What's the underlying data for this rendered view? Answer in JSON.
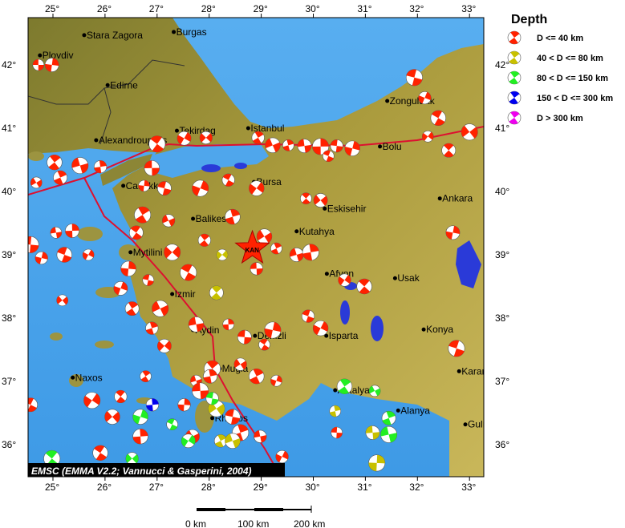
{
  "legend": {
    "title": "Depth",
    "items": [
      {
        "label": "D <= 40 km",
        "color": "#ff2200"
      },
      {
        "label": "40 < D <= 80 km",
        "color": "#c8c000"
      },
      {
        "label": "80 < D <= 150 km",
        "color": "#22ee22"
      },
      {
        "label": "150 < D <= 300 km",
        "color": "#0000ee"
      },
      {
        "label": "D > 300 km",
        "color": "#ee00ee"
      }
    ]
  },
  "credit": "EMSC (EMMA V2.2; Vannucci & Gasperini, 2004)",
  "axes": {
    "lon_ticks": [
      "25°",
      "26°",
      "27°",
      "28°",
      "29°",
      "30°",
      "31°",
      "32°",
      "33°"
    ],
    "lat_ticks": [
      "36°",
      "37°",
      "38°",
      "39°",
      "40°",
      "41°",
      "42°"
    ]
  },
  "scale_bar": {
    "labels": [
      "0 km",
      "100 km",
      "200 km"
    ]
  },
  "epicenter": {
    "label": "KAN",
    "lon": 28.83,
    "lat": 39.1,
    "color": "#ff2200"
  },
  "cities": [
    {
      "name": "Stara Zagora",
      "lon": 25.6,
      "lat": 42.47
    },
    {
      "name": "Burgas",
      "lon": 27.32,
      "lat": 42.52
    },
    {
      "name": "Plovdiv",
      "lon": 24.75,
      "lat": 42.15
    },
    {
      "name": "Edirne",
      "lon": 26.05,
      "lat": 41.68
    },
    {
      "name": "Alexandroupolis",
      "lon": 25.83,
      "lat": 40.81
    },
    {
      "name": "Tekirdag",
      "lon": 27.38,
      "lat": 40.96
    },
    {
      "name": "Istanbul",
      "lon": 28.75,
      "lat": 41.0
    },
    {
      "name": "Canakkale",
      "lon": 26.35,
      "lat": 40.09
    },
    {
      "name": "Bursa",
      "lon": 28.86,
      "lat": 40.15
    },
    {
      "name": "Bolu",
      "lon": 31.28,
      "lat": 40.71
    },
    {
      "name": "Zonguldak",
      "lon": 31.42,
      "lat": 41.43
    },
    {
      "name": "Ankara",
      "lon": 32.43,
      "lat": 39.89
    },
    {
      "name": "Eskisehir",
      "lon": 30.22,
      "lat": 39.73
    },
    {
      "name": "Kutahya",
      "lon": 29.68,
      "lat": 39.37
    },
    {
      "name": "Balikesir",
      "lon": 27.69,
      "lat": 39.57
    },
    {
      "name": "Mytilini",
      "lon": 26.49,
      "lat": 39.04
    },
    {
      "name": "Afyon",
      "lon": 30.26,
      "lat": 38.7
    },
    {
      "name": "Usak",
      "lon": 31.57,
      "lat": 38.63
    },
    {
      "name": "Konya",
      "lon": 32.12,
      "lat": 37.82
    },
    {
      "name": "Izmir",
      "lon": 27.29,
      "lat": 38.38
    },
    {
      "name": "Aydin",
      "lon": 27.69,
      "lat": 37.81
    },
    {
      "name": "Denizli",
      "lon": 28.88,
      "lat": 37.72
    },
    {
      "name": "Isparta",
      "lon": 30.25,
      "lat": 37.72
    },
    {
      "name": "Mugla",
      "lon": 28.2,
      "lat": 37.2
    },
    {
      "name": "Naxos",
      "lon": 25.38,
      "lat": 37.06
    },
    {
      "name": "Rhodos",
      "lon": 28.06,
      "lat": 36.42
    },
    {
      "name": "Antalya",
      "lon": 30.42,
      "lat": 36.86
    },
    {
      "name": "Alanya",
      "lon": 31.63,
      "lat": 36.54
    },
    {
      "name": "Karaman",
      "lon": 32.8,
      "lat": 37.16
    },
    {
      "name": "Gulnar",
      "lon": 32.92,
      "lat": 36.32
    }
  ],
  "events": [
    [
      24.72,
      42.0,
      0
    ],
    [
      24.98,
      42.0,
      0
    ],
    [
      31.94,
      41.8,
      0
    ],
    [
      32.14,
      41.48,
      0
    ],
    [
      32.4,
      41.16,
      0
    ],
    [
      32.2,
      40.87,
      0
    ],
    [
      32.6,
      40.65,
      0
    ],
    [
      33.0,
      40.94,
      0
    ],
    [
      28.94,
      40.85,
      0
    ],
    [
      29.22,
      40.73,
      0
    ],
    [
      29.52,
      40.73,
      0
    ],
    [
      29.83,
      40.72,
      0
    ],
    [
      30.14,
      40.71,
      0
    ],
    [
      30.45,
      40.72,
      0
    ],
    [
      30.75,
      40.68,
      0
    ],
    [
      30.29,
      40.56,
      0
    ],
    [
      27.52,
      40.84,
      0
    ],
    [
      27.0,
      40.75,
      0
    ],
    [
      27.94,
      40.85,
      0
    ],
    [
      25.03,
      40.46,
      0
    ],
    [
      24.68,
      40.14,
      0
    ],
    [
      25.14,
      40.22,
      0
    ],
    [
      25.52,
      40.41,
      0
    ],
    [
      25.91,
      40.39,
      0
    ],
    [
      26.9,
      40.37,
      0
    ],
    [
      26.75,
      40.09,
      0
    ],
    [
      27.14,
      40.05,
      0
    ],
    [
      27.83,
      40.05,
      0
    ],
    [
      28.37,
      40.18,
      0
    ],
    [
      28.91,
      40.05,
      0
    ],
    [
      29.86,
      39.89,
      0
    ],
    [
      30.14,
      39.86,
      0
    ],
    [
      26.72,
      39.63,
      0
    ],
    [
      27.22,
      39.54,
      0
    ],
    [
      28.45,
      39.6,
      0
    ],
    [
      25.06,
      39.35,
      0
    ],
    [
      25.37,
      39.38,
      0
    ],
    [
      24.57,
      39.16,
      0
    ],
    [
      24.78,
      38.95,
      0
    ],
    [
      25.22,
      39.0,
      0
    ],
    [
      25.68,
      39.0,
      0
    ],
    [
      26.6,
      39.35,
      0
    ],
    [
      27.29,
      39.04,
      0
    ],
    [
      27.91,
      39.23,
      0
    ],
    [
      29.06,
      39.29,
      0
    ],
    [
      29.29,
      39.1,
      0
    ],
    [
      29.68,
      39.0,
      0
    ],
    [
      29.95,
      39.04,
      0
    ],
    [
      28.91,
      38.78,
      0
    ],
    [
      26.45,
      38.78,
      0
    ],
    [
      26.83,
      38.6,
      0
    ],
    [
      26.3,
      38.47,
      0
    ],
    [
      27.6,
      38.72,
      0
    ],
    [
      30.6,
      38.6,
      0
    ],
    [
      30.98,
      38.5,
      0
    ],
    [
      25.18,
      38.28,
      0
    ],
    [
      26.52,
      38.15,
      0
    ],
    [
      27.06,
      38.15,
      0
    ],
    [
      26.9,
      37.84,
      0
    ],
    [
      27.75,
      37.9,
      0
    ],
    [
      28.37,
      37.9,
      0
    ],
    [
      28.68,
      37.7,
      0
    ],
    [
      29.22,
      37.81,
      0
    ],
    [
      29.9,
      38.03,
      0
    ],
    [
      30.14,
      37.84,
      0
    ],
    [
      29.06,
      37.58,
      0
    ],
    [
      27.14,
      37.56,
      0
    ],
    [
      28.06,
      37.2,
      0
    ],
    [
      28.6,
      37.27,
      0
    ],
    [
      28.91,
      37.08,
      0
    ],
    [
      27.75,
      37.01,
      0
    ],
    [
      28.02,
      37.08,
      0
    ],
    [
      27.83,
      36.85,
      0
    ],
    [
      27.52,
      36.63,
      0
    ],
    [
      28.45,
      36.44,
      0
    ],
    [
      29.29,
      37.01,
      0
    ],
    [
      24.57,
      36.63,
      0
    ],
    [
      25.75,
      36.7,
      0
    ],
    [
      26.3,
      36.76,
      0
    ],
    [
      26.14,
      36.44,
      0
    ],
    [
      26.78,
      37.08,
      0
    ],
    [
      27.68,
      36.13,
      0
    ],
    [
      28.6,
      36.19,
      0
    ],
    [
      28.98,
      36.13,
      0
    ],
    [
      26.68,
      36.13,
      0
    ],
    [
      30.45,
      36.19,
      0
    ],
    [
      32.68,
      39.35,
      0
    ],
    [
      32.75,
      37.52,
      0
    ],
    [
      29.4,
      35.81,
      0
    ],
    [
      25.91,
      35.87,
      0
    ],
    [
      28.25,
      39.0,
      1
    ],
    [
      28.14,
      38.4,
      1
    ],
    [
      28.14,
      36.57,
      1
    ],
    [
      28.22,
      36.06,
      1
    ],
    [
      28.45,
      36.06,
      1
    ],
    [
      30.42,
      36.53,
      1
    ],
    [
      31.14,
      36.19,
      1
    ],
    [
      31.22,
      35.71,
      1
    ],
    [
      28.06,
      36.73,
      2
    ],
    [
      26.68,
      36.44,
      2
    ],
    [
      27.29,
      36.32,
      2
    ],
    [
      27.6,
      36.06,
      2
    ],
    [
      24.98,
      35.78,
      2
    ],
    [
      26.52,
      35.78,
      2
    ],
    [
      30.6,
      36.92,
      2
    ],
    [
      31.18,
      36.85,
      2
    ],
    [
      31.45,
      36.42,
      2
    ],
    [
      31.45,
      36.16,
      2
    ],
    [
      26.91,
      36.63,
      3
    ]
  ]
}
